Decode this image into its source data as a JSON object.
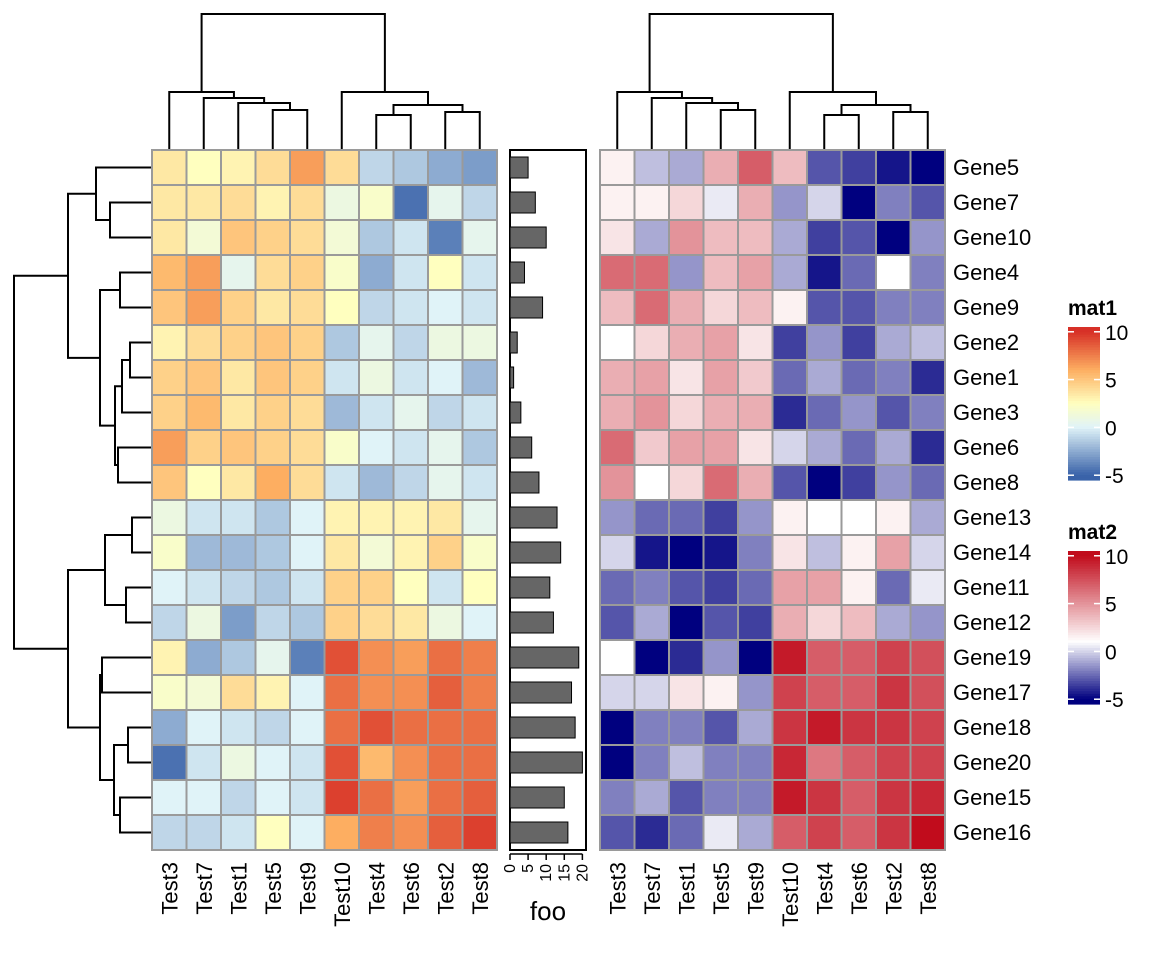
{
  "chart_data": [
    {
      "type": "heatmap",
      "name": "mat1",
      "row_order": [
        "Gene5",
        "Gene7",
        "Gene10",
        "Gene4",
        "Gene9",
        "Gene2",
        "Gene1",
        "Gene3",
        "Gene6",
        "Gene8",
        "Gene13",
        "Gene14",
        "Gene11",
        "Gene12",
        "Gene19",
        "Gene17",
        "Gene18",
        "Gene20",
        "Gene15",
        "Gene16"
      ],
      "column_order": [
        "Test3",
        "Test7",
        "Test1",
        "Test5",
        "Test9",
        "Test10",
        "Test4",
        "Test6",
        "Test2",
        "Test8"
      ],
      "values": [
        [
          3.5,
          2.5,
          3,
          4,
          6.5,
          4,
          -1,
          -1.5,
          -2.5,
          -3
        ],
        [
          3.5,
          3.5,
          4,
          3,
          4,
          1,
          2,
          -4.5,
          0.5,
          -1
        ],
        [
          3.5,
          1.5,
          5,
          4.5,
          4,
          1.5,
          -1.5,
          -0.5,
          -4,
          0.5
        ],
        [
          5.5,
          6.5,
          0.5,
          4,
          4.5,
          2,
          -2.5,
          -0.5,
          2.5,
          -0.5
        ],
        [
          5,
          6.5,
          4.5,
          3.5,
          4,
          2.5,
          -1,
          -0.5,
          0,
          -0.5
        ],
        [
          3,
          4,
          4.5,
          5,
          4.5,
          -1.5,
          0.5,
          -1,
          1,
          1
        ],
        [
          4.5,
          5,
          3.5,
          5,
          4.5,
          -0.5,
          1,
          -0.5,
          0,
          -2
        ],
        [
          4.5,
          5.5,
          3.5,
          4.5,
          4,
          -2,
          -0.5,
          0.5,
          -1,
          -0.5
        ],
        [
          6.5,
          4.5,
          5,
          4.5,
          4,
          2,
          0,
          -0.5,
          0.5,
          -1.5
        ],
        [
          5,
          2.5,
          3.5,
          6,
          4,
          -0.5,
          -2,
          -1,
          0.5,
          -0.5
        ],
        [
          1,
          -0.5,
          -0.5,
          -1.5,
          0,
          3,
          3,
          3,
          3.5,
          0.5
        ],
        [
          2,
          -2,
          -2,
          -1.5,
          0,
          3.5,
          1.5,
          3,
          4.5,
          2
        ],
        [
          0,
          -0.5,
          -1,
          -1.5,
          -0.5,
          4.5,
          4.5,
          2.5,
          -0.5,
          2.5
        ],
        [
          -1,
          1,
          -3,
          -1,
          -1.5,
          4.5,
          4,
          3.5,
          1,
          0
        ],
        [
          3,
          -2.5,
          -1.5,
          0.5,
          -4,
          9,
          7,
          6.5,
          8,
          7.5
        ],
        [
          2,
          1.5,
          4,
          3,
          0,
          8,
          7,
          7,
          8.5,
          7.5
        ],
        [
          -2.5,
          0,
          -0.5,
          -1,
          0,
          8,
          9,
          8,
          8,
          8
        ],
        [
          -4.5,
          -0.5,
          1,
          0,
          -0.5,
          9,
          5.5,
          7,
          8,
          8
        ],
        [
          0,
          0,
          -1,
          0,
          -0.5,
          9.5,
          8,
          6.5,
          8,
          8.5
        ],
        [
          -1,
          -1,
          -0.5,
          2.5,
          0,
          6,
          7.5,
          7,
          8.5,
          9.5
        ]
      ],
      "legend": {
        "title": "mat1",
        "ticks": [
          -5,
          0,
          5,
          10
        ],
        "colors": [
          "#3a63a9",
          "#e0f3f8",
          "#ffffbf",
          "#fdae61",
          "#d73027"
        ]
      }
    },
    {
      "type": "bar",
      "name": "foo",
      "orientation": "horizontal",
      "categories": [
        "Gene5",
        "Gene7",
        "Gene10",
        "Gene4",
        "Gene9",
        "Gene2",
        "Gene1",
        "Gene3",
        "Gene6",
        "Gene8",
        "Gene13",
        "Gene14",
        "Gene11",
        "Gene12",
        "Gene19",
        "Gene17",
        "Gene18",
        "Gene20",
        "Gene15",
        "Gene16"
      ],
      "values": [
        5,
        7,
        10,
        4,
        9,
        2,
        1,
        3,
        6,
        8,
        13,
        14,
        11,
        12,
        19,
        17,
        18,
        20,
        15,
        16
      ],
      "xlabel": "foo",
      "ticks": [
        0,
        5,
        10,
        15,
        20
      ],
      "xlim": [
        0,
        21
      ]
    },
    {
      "type": "heatmap",
      "name": "mat2",
      "row_order": [
        "Gene5",
        "Gene7",
        "Gene10",
        "Gene4",
        "Gene9",
        "Gene2",
        "Gene1",
        "Gene3",
        "Gene6",
        "Gene8",
        "Gene13",
        "Gene14",
        "Gene11",
        "Gene12",
        "Gene19",
        "Gene17",
        "Gene18",
        "Gene20",
        "Gene15",
        "Gene16"
      ],
      "column_order": [
        "Test3",
        "Test7",
        "Test1",
        "Test5",
        "Test9",
        "Test10",
        "Test4",
        "Test6",
        "Test2",
        "Test8"
      ],
      "values": [
        [
          1.5,
          -0.5,
          -1,
          4,
          7,
          3.5,
          -3,
          -3.5,
          -4.5,
          -5
        ],
        [
          1.5,
          1.5,
          2.5,
          0.5,
          4,
          -1.5,
          0,
          -5.5,
          -2,
          -3
        ],
        [
          2,
          -1,
          5,
          3.5,
          3.5,
          -1,
          -3.5,
          -3,
          -5.5,
          -1.5
        ],
        [
          6.5,
          6.5,
          -1.5,
          3.5,
          4.5,
          -1,
          -4.5,
          -2.5,
          1,
          -2
        ],
        [
          3.5,
          6.5,
          4,
          2.5,
          3.5,
          1.5,
          -3,
          -3,
          -2,
          -2
        ],
        [
          1,
          2.5,
          4,
          4.5,
          2,
          -3.5,
          -1.5,
          -3.5,
          -1,
          -0.5
        ],
        [
          4,
          4.5,
          2,
          4.5,
          3,
          -2.5,
          -1,
          -2.5,
          -2,
          -4
        ],
        [
          4,
          5,
          2.5,
          4,
          4,
          -4,
          -2.5,
          -1.5,
          -3,
          -2
        ],
        [
          6.5,
          3,
          4.5,
          4.5,
          2,
          0,
          -1,
          -2.5,
          -1,
          -4
        ],
        [
          5,
          1,
          2.5,
          6.5,
          4,
          -3,
          -5,
          -3.5,
          -1.5,
          -2.5
        ],
        [
          -1.5,
          -2.5,
          -2.5,
          -3.5,
          -1.5,
          1.5,
          1,
          1,
          1.5,
          -1
        ],
        [
          0,
          -4.5,
          -5,
          -4.5,
          -2,
          2,
          -0.5,
          1.5,
          4.5,
          0
        ],
        [
          -2.5,
          -2,
          -3,
          -3.5,
          -2.5,
          4.5,
          4.5,
          1.5,
          -2.5,
          0.5
        ],
        [
          -3,
          -1,
          -5,
          -3,
          -3.5,
          4,
          2.5,
          3.5,
          -1,
          -1.5
        ],
        [
          1,
          -5,
          -4,
          -1.5,
          -6,
          9.5,
          7,
          7,
          8,
          7.5
        ],
        [
          0,
          0,
          2,
          1.5,
          -1.5,
          8,
          7,
          7,
          8.5,
          7.5
        ],
        [
          -5,
          -2,
          -2,
          -3,
          -1,
          8.5,
          9.5,
          8.5,
          8.5,
          8
        ],
        [
          -6,
          -2,
          -0.5,
          -2,
          -2,
          9,
          6,
          7,
          8,
          8
        ],
        [
          -2,
          -1,
          -3,
          -2,
          -2,
          9.5,
          8.5,
          7,
          8.5,
          9
        ],
        [
          -3,
          -4,
          -2.5,
          0.5,
          -1,
          7,
          8,
          7,
          8.5,
          10
        ]
      ],
      "legend": {
        "title": "mat2",
        "ticks": [
          -5,
          0,
          5,
          10
        ],
        "colors": [
          "#00007f",
          "#ffffff",
          "#c10c1c"
        ]
      }
    }
  ]
}
